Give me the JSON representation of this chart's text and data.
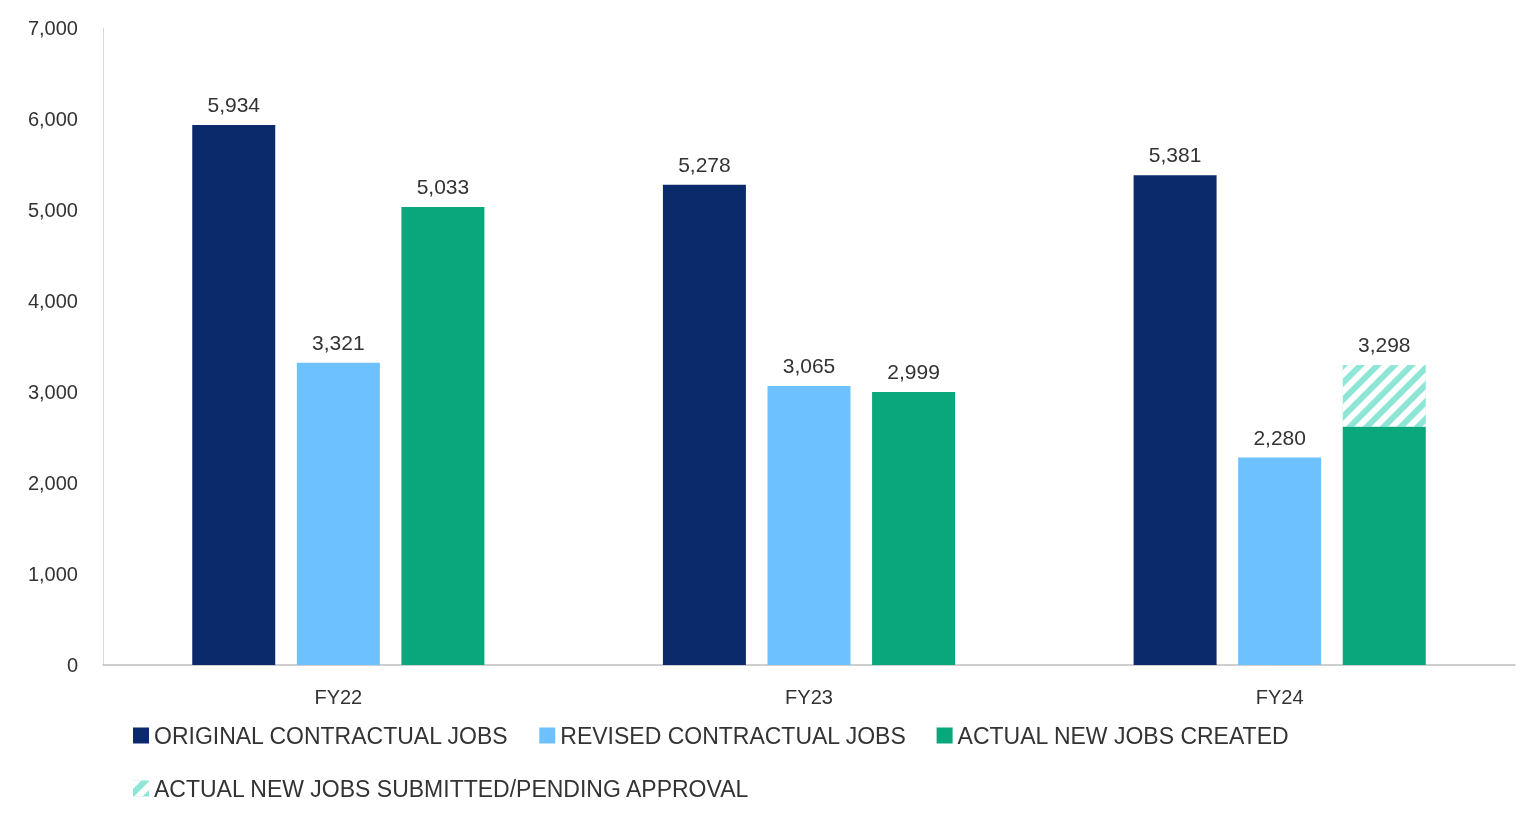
{
  "chart_data": {
    "type": "bar",
    "categories": [
      "FY22",
      "FY23",
      "FY24"
    ],
    "series": [
      {
        "name": "ORIGINAL CONTRACTUAL JOBS",
        "color": "#0b2a6b",
        "values": [
          5934,
          5278,
          5381
        ],
        "value_labels": [
          "5,934",
          "5,278",
          "5,381"
        ]
      },
      {
        "name": "REVISED CONTRACTUAL JOBS",
        "color": "#6ec1ff",
        "values": [
          3321,
          3065,
          2280
        ],
        "value_labels": [
          "3,321",
          "3,065",
          "2,280"
        ]
      },
      {
        "name": "ACTUAL NEW JOBS CREATED",
        "color": "#0aa77d",
        "values": [
          5033,
          2999,
          2620
        ],
        "value_labels": [
          "5,033",
          "2,999",
          null
        ]
      },
      {
        "name": "ACTUAL NEW JOBS SUBMITTED/PENDING APPROVAL",
        "color": "#8ee6d6",
        "values": [
          null,
          null,
          678
        ],
        "base": [
          null,
          null,
          2620
        ]
      }
    ],
    "annotations": [
      "3,298"
    ],
    "ylim": [
      0,
      7000
    ],
    "yticks": [
      {
        "value": 0,
        "label": "0"
      },
      {
        "value": 1000,
        "label": "1,000"
      },
      {
        "value": 2000,
        "label": "2,000"
      },
      {
        "value": 3000,
        "label": "3,000"
      },
      {
        "value": 4000,
        "label": "4,000"
      },
      {
        "value": 5000,
        "label": "5,000"
      },
      {
        "value": 6000,
        "label": "6,000"
      },
      {
        "value": 7000,
        "label": "7,000"
      }
    ],
    "grid": false,
    "legend": "bottom"
  }
}
